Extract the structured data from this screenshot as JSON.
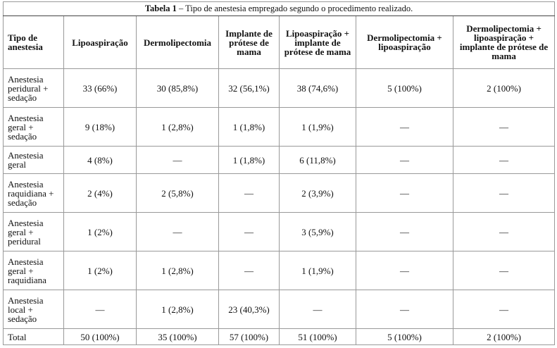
{
  "caption": {
    "label": "Tabela 1",
    "text": "– Tipo de anestesia empregado segundo o procedimento realizado."
  },
  "table": {
    "header": [
      "Tipo de anestesia",
      "Lipoaspiração",
      "Dermolipectomia",
      "Implante de prótese de mama",
      "Lipoaspiração + implante de prótese de mama",
      "Dermolipectomia + lipoaspiração",
      "Dermolipectomia + lipoaspiração + implante de prótese de mama"
    ],
    "rows": [
      [
        "Anestesia peridural + sedação",
        "33 (66%)",
        "30 (85,8%)",
        "32 (56,1%)",
        "38 (74,6%)",
        "5 (100%)",
        "2 (100%)"
      ],
      [
        "Anestesia geral + sedação",
        "9 (18%)",
        "1 (2,8%)",
        "1 (1,8%)",
        "1 (1,9%)",
        "—",
        "—"
      ],
      [
        "Anestesia geral",
        "4 (8%)",
        "—",
        "1 (1,8%)",
        "6 (11,8%)",
        "—",
        "—"
      ],
      [
        "Anestesia raquidiana + sedação",
        "2 (4%)",
        "2 (5,8%)",
        "—",
        "2 (3,9%)",
        "—",
        "—"
      ],
      [
        "Anestesia geral + peridural",
        "1 (2%)",
        "—",
        "—",
        "3 (5,9%)",
        "—",
        "—"
      ],
      [
        "Anestesia geral + raquidiana",
        "1 (2%)",
        "1 (2,8%)",
        "—",
        "1 (1,9%)",
        "—",
        "—"
      ],
      [
        "Anestesia local + sedação",
        "—",
        "1 (2,8%)",
        "23 (40,3%)",
        "—",
        "—",
        "—"
      ],
      [
        "Total",
        "50 (100%)",
        "35 (100%)",
        "57 (100%)",
        "51 (100%)",
        "5 (100%)",
        "2 (100%)"
      ]
    ]
  }
}
